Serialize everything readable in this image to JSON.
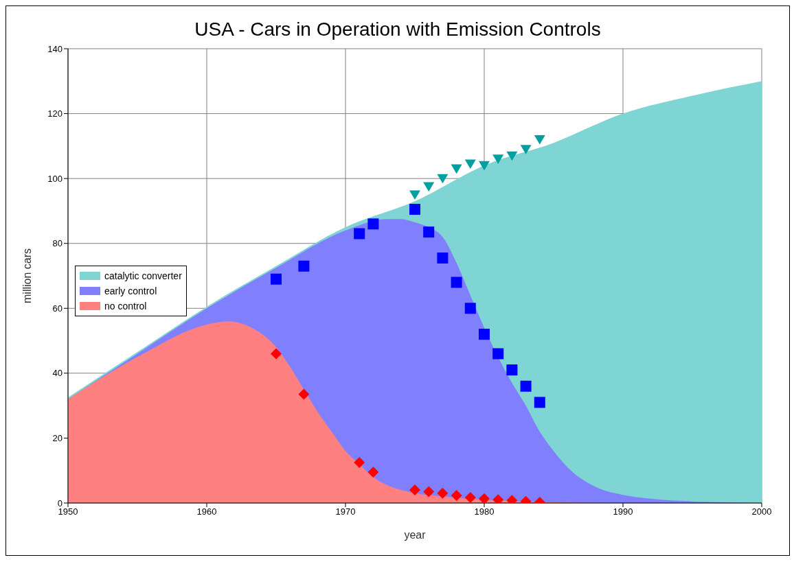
{
  "chart_data": {
    "type": "area",
    "title": "USA - Cars in Operation with Emission Controls",
    "xlabel": "year",
    "ylabel": "million cars",
    "xlim": [
      1950,
      2000
    ],
    "xticks": [
      1950,
      1960,
      1970,
      1980,
      1990,
      2000
    ],
    "ylim": [
      0,
      140
    ],
    "yticks": [
      0,
      20,
      40,
      60,
      80,
      100,
      120,
      140
    ],
    "grid": true,
    "legend": "left",
    "series": [
      {
        "name": "catalytic converter",
        "color": "#7fd4d4",
        "x": [
          1950,
          1955,
          1960,
          1965,
          1970,
          1975,
          1980,
          1985,
          1990,
          1995,
          2000
        ],
        "values": [
          32.5,
          46.5,
          60.5,
          73,
          85,
          93,
          104,
          111,
          120,
          125.5,
          130
        ]
      },
      {
        "name": "early control",
        "color": "#8080ff",
        "x": [
          1950,
          1955,
          1960,
          1965,
          1970,
          1973,
          1974,
          1975,
          1976,
          1977,
          1978,
          1979,
          1980,
          1981,
          1982,
          1983,
          1984,
          1985,
          1986,
          1988,
          1990,
          1995,
          2000
        ],
        "values": [
          32,
          46,
          60,
          72.5,
          84,
          87.5,
          87.5,
          86.5,
          85,
          82,
          74,
          64,
          54,
          45,
          37,
          30,
          22,
          16,
          11,
          5,
          2.5,
          0.5,
          0
        ]
      },
      {
        "name": "no control",
        "color": "#ff8080",
        "x": [
          1950,
          1955,
          1960,
          1961.5,
          1963,
          1965,
          1966,
          1967,
          1968,
          1969,
          1970,
          1971,
          1972,
          1973,
          1974,
          1975,
          1977,
          1980,
          1985,
          1990,
          2000
        ],
        "values": [
          32,
          45,
          55,
          56,
          54.5,
          48,
          42,
          35,
          28,
          22,
          16,
          12,
          8,
          5.5,
          4,
          3,
          2,
          1,
          0.2,
          0,
          0
        ]
      },
      {
        "type": "scatter",
        "marker": "triangle",
        "color": "#00a0a0",
        "x": [
          1975,
          1976,
          1977,
          1978,
          1979,
          1980,
          1981,
          1982,
          1983,
          1984
        ],
        "values": [
          95,
          97.5,
          100,
          103,
          104.5,
          104,
          106,
          107,
          109,
          112
        ]
      },
      {
        "type": "scatter",
        "marker": "square",
        "color": "#0000ff",
        "x": [
          1965,
          1967,
          1971,
          1972
        ],
        "values": [
          69,
          73,
          83,
          86
        ]
      },
      {
        "type": "scatter",
        "marker": "square",
        "color": "#0000ff",
        "x": [
          1975,
          1976,
          1977,
          1978,
          1979,
          1980,
          1981,
          1982,
          1983,
          1984
        ],
        "values": [
          90.5,
          83.5,
          75.5,
          68,
          60,
          52,
          46,
          41,
          36,
          31
        ]
      },
      {
        "type": "scatter",
        "marker": "diamond",
        "color": "#ff0000",
        "x": [
          1965,
          1967,
          1971,
          1972
        ],
        "values": [
          46,
          33.5,
          12.5,
          9.5
        ]
      },
      {
        "type": "scatter",
        "marker": "diamond",
        "color": "#ff0000",
        "x": [
          1975,
          1976,
          1977,
          1978,
          1979,
          1980,
          1981,
          1982,
          1983,
          1984
        ],
        "values": [
          4,
          3.5,
          3,
          2.3,
          1.7,
          1.3,
          1,
          0.8,
          0.5,
          0.2
        ]
      }
    ]
  }
}
